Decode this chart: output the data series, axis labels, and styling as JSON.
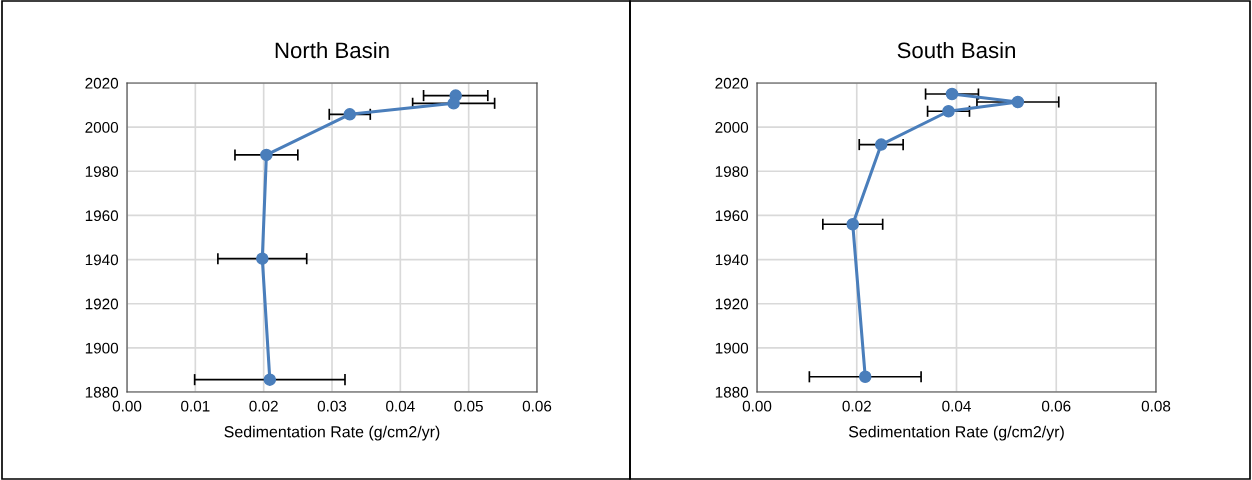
{
  "chart_data": [
    {
      "type": "line",
      "title": "North Basin",
      "xlabel": "Sedimentation Rate (g/cm2/yr)",
      "x": [
        0.0481,
        0.0478,
        0.0326,
        0.0204,
        0.0198,
        0.0209
      ],
      "values": [
        2014.3,
        2010.8,
        2005.8,
        1987.4,
        1940.4,
        1885.6
      ],
      "xerrors": [
        0.0047,
        0.006,
        0.003,
        0.0046,
        0.0065,
        0.011
      ],
      "color": "#4a7ebb",
      "marker": "circle",
      "xlim": [
        0,
        0.06
      ],
      "xticks": [
        {
          "value": 0,
          "label": "0.00"
        },
        {
          "value": 0.01,
          "label": "0.01"
        },
        {
          "value": 0.02,
          "label": "0.02"
        },
        {
          "value": 0.03,
          "label": "0.03"
        },
        {
          "value": 0.04,
          "label": "0.04"
        },
        {
          "value": 0.05,
          "label": "0.05"
        },
        {
          "value": 0.06,
          "label": "0.06"
        }
      ],
      "ylim": [
        1880,
        2020
      ],
      "yticks": [
        1880,
        1900,
        1920,
        1940,
        1960,
        1980,
        2000,
        2020
      ],
      "grid": true
    },
    {
      "type": "line",
      "title": "South Basin",
      "xlabel": "Sedimentation Rate (g/cm2/yr)",
      "x": [
        0.0391,
        0.0523,
        0.0384,
        0.0249,
        0.0192,
        0.0217
      ],
      "values": [
        2015.0,
        2011.4,
        2007.2,
        1992.1,
        1956.0,
        1886.9
      ],
      "xerrors": [
        0.0053,
        0.0082,
        0.0042,
        0.0044,
        0.006,
        0.0112
      ],
      "color": "#4a7ebb",
      "marker": "circle",
      "xlim": [
        0,
        0.08
      ],
      "xticks": [
        {
          "value": 0,
          "label": "0.00"
        },
        {
          "value": 0.02,
          "label": "0.02"
        },
        {
          "value": 0.04,
          "label": "0.04"
        },
        {
          "value": 0.06,
          "label": "0.06"
        },
        {
          "value": 0.08,
          "label": "0.08"
        }
      ],
      "ylim": [
        1880,
        2020
      ],
      "yticks": [
        1880,
        1900,
        1920,
        1940,
        1960,
        1980,
        2000,
        2020
      ],
      "grid": true
    }
  ]
}
